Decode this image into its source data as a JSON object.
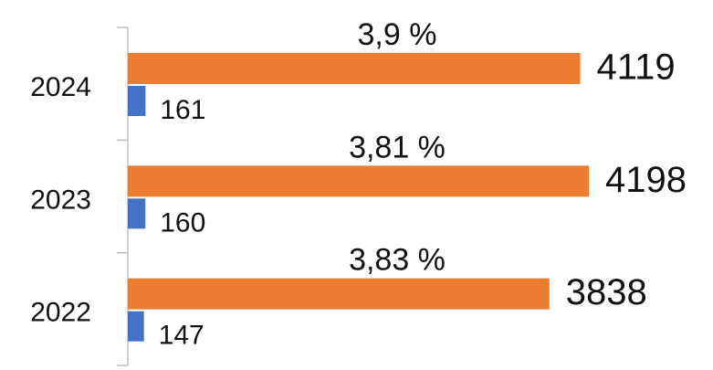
{
  "chart_data": {
    "type": "bar",
    "orientation": "horizontal",
    "categories": [
      "2024",
      "2023",
      "2022"
    ],
    "series": [
      {
        "color": "#ed7d31",
        "values": [
          4119,
          4198,
          3838
        ]
      },
      {
        "color": "#4472c4",
        "values": [
          161,
          160,
          147
        ]
      }
    ],
    "annotations": [
      "3,9 %",
      "3,81 %",
      "3,83 %"
    ],
    "xlim": [
      0,
      5328
    ]
  }
}
